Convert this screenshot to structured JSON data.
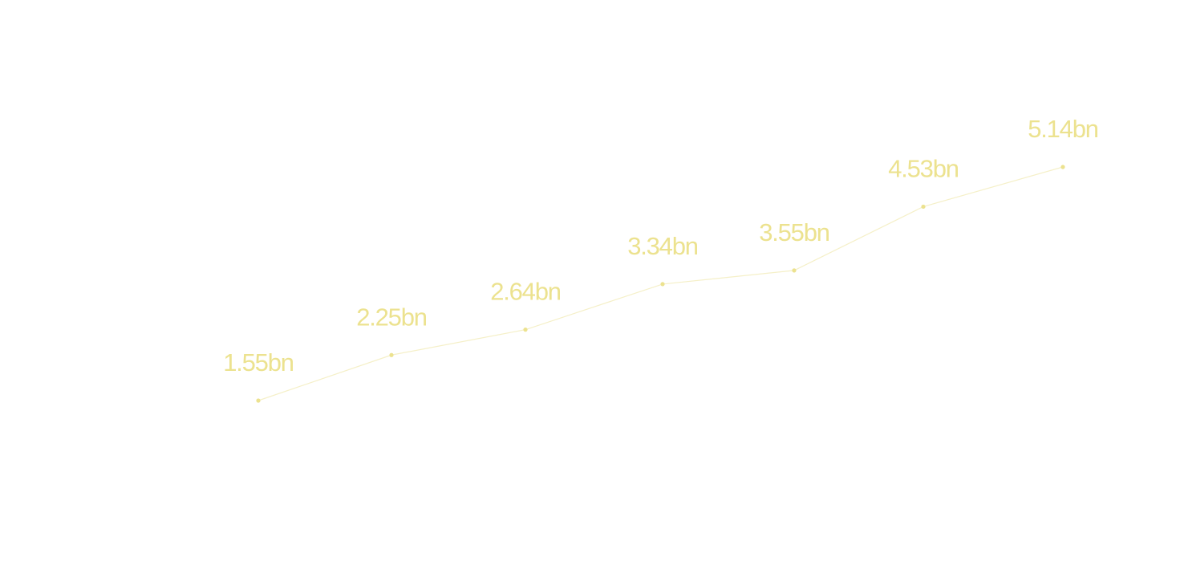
{
  "chart_data": {
    "type": "line",
    "title": "",
    "xlabel": "",
    "ylabel": "",
    "x_index": [
      1,
      2,
      3,
      4,
      5,
      6,
      7
    ],
    "values": [
      1.55,
      2.25,
      2.64,
      3.34,
      3.55,
      4.53,
      5.14
    ],
    "data_labels": [
      "1.55bn",
      "2.25bn",
      "2.64bn",
      "3.34bn",
      "3.55bn",
      "4.53bn",
      "5.14bn"
    ],
    "unit_suffix": "bn",
    "grid": false,
    "legend": "none",
    "axes_visible": false,
    "colors": {
      "line": "#f5f0c8",
      "marker": "#ece28f",
      "label": "#ece28f",
      "background": "#ffffff"
    }
  }
}
